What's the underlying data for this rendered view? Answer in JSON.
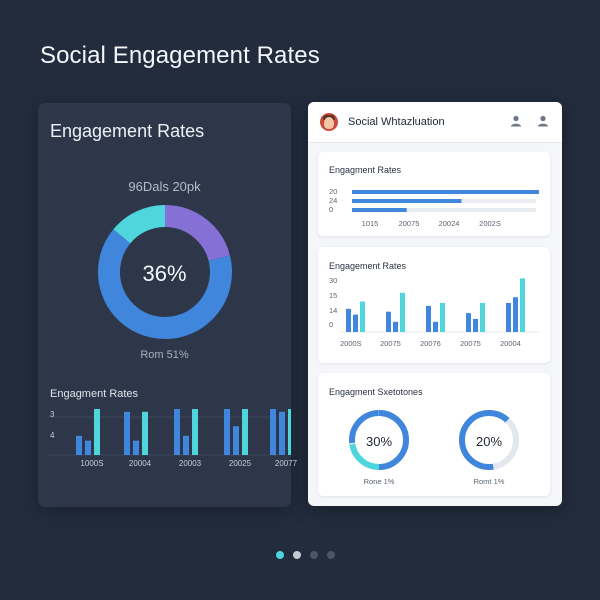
{
  "page": {
    "title": "Social Engagement Rates"
  },
  "left_card": {
    "title": "Engagement Rates",
    "donut": {
      "top_label": "96Dals 20pk",
      "value_label": "36%",
      "bottom_label": "Rom 51%"
    },
    "bar_chart_title": "Engagment Rates",
    "y_labels": [
      "3",
      "4"
    ]
  },
  "right_card": {
    "header_title": "Social Whtazluation",
    "panel1": {
      "title": "Engagment Rates"
    },
    "panel2": {
      "title": "Engagement Rates"
    },
    "panel3": {
      "title": "Engagment Sxetotones",
      "donut_left_value": "30%",
      "donut_left_label": "Rone 1%",
      "donut_right_value": "20%",
      "donut_right_label": "Romt 1%"
    }
  },
  "icons": {
    "user_left": "user-icon",
    "user_right": "user-icon",
    "avatar": "avatar"
  },
  "colors": {
    "background": "#222c3d",
    "card_dark": "#2d3749",
    "blue": "#3f86dc",
    "teal": "#4fd6dc",
    "purple": "#8571d6",
    "white_card": "#f4f6f9"
  },
  "pager": {
    "dots": 4,
    "active_index": 0
  },
  "chart_data": [
    {
      "type": "pie",
      "title": "Engagement Rates",
      "labels": [
        "",
        "",
        ""
      ],
      "values": [
        65,
        21,
        14
      ],
      "center_label": "36%",
      "colors": [
        "#3f86dc",
        "#8571d6",
        "#4fd6dc"
      ]
    },
    {
      "type": "bar",
      "title": "Engagment Rates",
      "categories": [
        "1000S",
        "20004",
        "20003",
        "20025",
        "20077"
      ],
      "series": [
        {
          "values": [
            4,
            9,
            13,
            11,
            12
          ]
        },
        {
          "values": [
            3,
            3,
            4,
            6,
            9
          ]
        },
        {
          "values": [
            10,
            9,
            12,
            17,
            18
          ]
        }
      ],
      "y_ticks": [
        "3",
        "4"
      ],
      "ylim": [
        0,
        20
      ]
    },
    {
      "type": "bar",
      "orientation": "horizontal",
      "title": "Engagment Rates",
      "categories": [
        "20",
        "24",
        "0"
      ],
      "values": [
        82,
        48,
        24
      ],
      "x_ticks": [
        "1015",
        "20075",
        "20024",
        "2002S"
      ],
      "xlim": [
        0,
        100
      ]
    },
    {
      "type": "bar",
      "title": "Engagement Rates",
      "categories": [
        "2000S",
        "20075",
        "20076",
        "20075",
        "20004"
      ],
      "series": [
        {
          "values": [
            16,
            14,
            18,
            13,
            20
          ]
        },
        {
          "values": [
            12,
            7,
            7,
            9,
            24
          ]
        },
        {
          "values": [
            21,
            27,
            20,
            20,
            37
          ]
        }
      ],
      "y_ticks": [
        "30",
        "15",
        "14",
        "0"
      ],
      "ylim": [
        0,
        40
      ]
    },
    {
      "type": "pie",
      "title": "Engagment Sxetotones",
      "values": [
        30,
        70
      ],
      "center_label": "30%",
      "colors": [
        "#4fd6dc",
        "#e3e7ee"
      ]
    },
    {
      "type": "pie",
      "values": [
        20,
        80
      ],
      "center_label": "20%",
      "colors": [
        "#3f86dc",
        "#e3e7ee"
      ]
    }
  ]
}
